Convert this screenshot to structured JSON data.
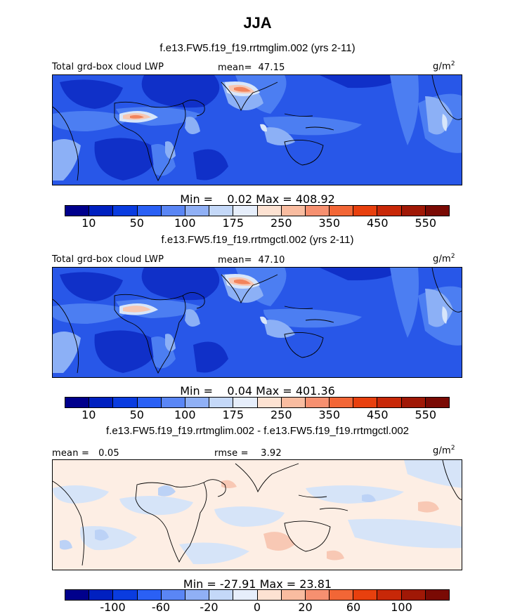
{
  "season": "JJA",
  "panels": [
    {
      "title": "f.e13.FW5.f19_f19.rrtmglim.002 (yrs 2-11)",
      "var_label": "Total grd-box cloud LWP",
      "mean_label": "mean=",
      "mean": "47.15",
      "units": "g/m",
      "units_exp": "2",
      "min_label": "Min =",
      "min": "0.02",
      "max_label": "Max =",
      "max": "408.92",
      "ticks": [
        "10",
        "50",
        "100",
        "175",
        "250",
        "350",
        "450",
        "550"
      ]
    },
    {
      "title": "f.e13.FW5.f19_f19.rrtmgctl.002 (yrs 2-11)",
      "var_label": "Total grd-box cloud LWP",
      "mean_label": "mean=",
      "mean": "47.10",
      "units": "g/m",
      "units_exp": "2",
      "min_label": "Min =",
      "min": "0.04",
      "max_label": "Max =",
      "max": "401.36",
      "ticks": [
        "10",
        "50",
        "100",
        "175",
        "250",
        "350",
        "450",
        "550"
      ]
    },
    {
      "title": "f.e13.FW5.f19_f19.rrtmglim.002 - f.e13.FW5.f19_f19.rrtmgctl.002",
      "mean_label": "mean =",
      "mean": "0.05",
      "rmse_label": "rmse =",
      "rmse": "3.92",
      "units": "g/m",
      "units_exp": "2",
      "min_label": "Min =",
      "min": "-27.91",
      "max_label": "Max =",
      "max": "23.81",
      "ticks": [
        "-100",
        "-60",
        "-20",
        "0",
        "20",
        "60",
        "100"
      ]
    }
  ],
  "colorbar_colors": [
    "#00008c",
    "#0020c0",
    "#0a3ce0",
    "#2a60f5",
    "#5a86f5",
    "#90b0f5",
    "#c4d8f8",
    "#e6eefb",
    "#fde2d2",
    "#f9bca0",
    "#f69070",
    "#f26636",
    "#e8400e",
    "#c82808",
    "#a01806",
    "#7a0a04"
  ],
  "map_colors": {
    "deep": "#1030c8",
    "base": "#2857e8",
    "mid": "#4c7ef2",
    "light": "#8cb0f6",
    "pale": "#d8e6fa",
    "hot1": "#f6c7b3",
    "hot2": "#f2845c",
    "diff_bg": "#fdeee4",
    "diff_blue": "#d6e4f8",
    "diff_blue2": "#bcd2f6",
    "diff_red": "#f8c8b4",
    "coast": "#000000"
  }
}
